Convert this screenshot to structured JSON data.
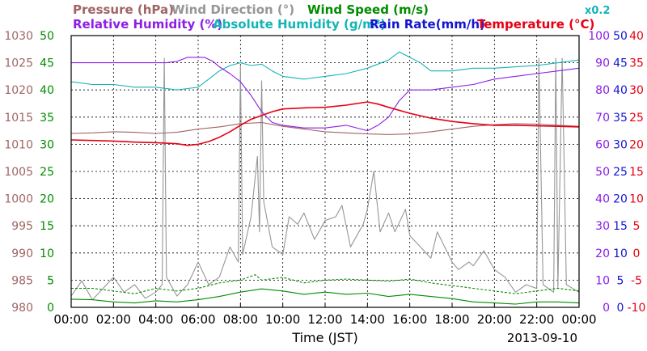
{
  "chart_data": {
    "type": "line",
    "xlabel": "Time (JST)",
    "date": "2013-09-10",
    "x_ticks": [
      "00:00",
      "02:00",
      "04:00",
      "06:00",
      "08:00",
      "10:00",
      "12:00",
      "14:00",
      "16:00",
      "18:00",
      "20:00",
      "22:00",
      "00:00"
    ],
    "xlim_hours": [
      0,
      24
    ],
    "grid": true,
    "legend": {
      "pressure": {
        "label": "Pressure (hPa)",
        "color": "#a06464"
      },
      "wind_direction": {
        "label": "Wind Direction (°)",
        "color": "#969696"
      },
      "wind_speed": {
        "label": "Wind Speed (m/s)",
        "color": "#008c00"
      },
      "relative_humidity": {
        "label": "Relative Humidity (%)",
        "color": "#8c1ee6"
      },
      "absolute_humidity": {
        "label": "Absolute Humidity (g/m³)",
        "color": "#14b4b4"
      },
      "absolute_humidity_scale": "x0.2",
      "rain_rate": {
        "label": "Rain Rate(mm/h)",
        "color": "#1414d2"
      },
      "temperature": {
        "label": "Temperature (°C)",
        "color": "#e60014"
      }
    },
    "axes": {
      "pressure": {
        "ticks": [
          "980",
          "985",
          "990",
          "995",
          "1000",
          "1005",
          "1010",
          "1015",
          "1020",
          "1025",
          "1030"
        ],
        "color": "#a06464"
      },
      "wind_speed": {
        "ticks": [
          "0",
          "5",
          "10",
          "15",
          "20",
          "25",
          "30",
          "35",
          "40",
          "45",
          "50"
        ],
        "color": "#008c00"
      },
      "relative_humidity": {
        "ticks": [
          "0",
          "10",
          "20",
          "30",
          "40",
          "50",
          "60",
          "70",
          "80",
          "90",
          "100"
        ],
        "color": "#8c1ee6"
      },
      "rain_rate": {
        "ticks": [
          "0",
          "5",
          "10",
          "15",
          "20",
          "25",
          "30",
          "35",
          "40",
          "45",
          "50"
        ],
        "color": "#1414d2"
      },
      "temperature": {
        "ticks": [
          "-10",
          "-5",
          "0",
          "5",
          "10",
          "15",
          "20",
          "25",
          "30",
          "35",
          "40"
        ],
        "color": "#e60014"
      }
    },
    "series": [
      {
        "key": "pressure",
        "unit": "hPa",
        "points": [
          [
            0,
            1012.0
          ],
          [
            1,
            1012.1
          ],
          [
            2,
            1012.3
          ],
          [
            3,
            1012.2
          ],
          [
            4,
            1012.0
          ],
          [
            5,
            1012.2
          ],
          [
            6,
            1012.8
          ],
          [
            7,
            1013.2
          ],
          [
            8,
            1013.8
          ],
          [
            9,
            1014.0
          ],
          [
            10,
            1013.3
          ],
          [
            11,
            1012.8
          ],
          [
            12,
            1012.3
          ],
          [
            13,
            1012.1
          ],
          [
            14,
            1011.9
          ],
          [
            15,
            1011.8
          ],
          [
            16,
            1011.9
          ],
          [
            17,
            1012.3
          ],
          [
            18,
            1012.8
          ],
          [
            19,
            1013.3
          ],
          [
            20,
            1013.6
          ],
          [
            21,
            1013.8
          ],
          [
            22,
            1013.7
          ],
          [
            23,
            1013.5
          ],
          [
            24,
            1013.3
          ]
        ]
      },
      {
        "key": "temperature",
        "unit": "°C",
        "points": [
          [
            0,
            20.8
          ],
          [
            1,
            20.7
          ],
          [
            2,
            20.6
          ],
          [
            3,
            20.4
          ],
          [
            4,
            20.3
          ],
          [
            5,
            20.1
          ],
          [
            5.5,
            19.8
          ],
          [
            6,
            20.0
          ],
          [
            6.5,
            20.5
          ],
          [
            7,
            21.3
          ],
          [
            7.5,
            22.3
          ],
          [
            8,
            23.5
          ],
          [
            8.5,
            24.6
          ],
          [
            9,
            25.3
          ],
          [
            9.5,
            26.0
          ],
          [
            10,
            26.5
          ],
          [
            11,
            26.7
          ],
          [
            12,
            26.8
          ],
          [
            13,
            27.2
          ],
          [
            14,
            27.8
          ],
          [
            14.5,
            27.4
          ],
          [
            15,
            26.8
          ],
          [
            16,
            25.7
          ],
          [
            17,
            24.8
          ],
          [
            18,
            24.2
          ],
          [
            19,
            23.8
          ],
          [
            20,
            23.5
          ],
          [
            21,
            23.5
          ],
          [
            22,
            23.4
          ],
          [
            23,
            23.3
          ],
          [
            24,
            23.2
          ]
        ]
      },
      {
        "key": "relative_humidity",
        "unit": "%",
        "points": [
          [
            0,
            90
          ],
          [
            4.5,
            90
          ],
          [
            5,
            90.5
          ],
          [
            5.5,
            92
          ],
          [
            6.3,
            92
          ],
          [
            6.7,
            90.5
          ],
          [
            7,
            88.5
          ],
          [
            7.5,
            86
          ],
          [
            8,
            83
          ],
          [
            8.5,
            78
          ],
          [
            9,
            72
          ],
          [
            9.5,
            68
          ],
          [
            10,
            67
          ],
          [
            11,
            66
          ],
          [
            12,
            66
          ],
          [
            13,
            67
          ],
          [
            14,
            65
          ],
          [
            14.5,
            67
          ],
          [
            15,
            70
          ],
          [
            15.5,
            76
          ],
          [
            16,
            80
          ],
          [
            17,
            80
          ],
          [
            18,
            81
          ],
          [
            19,
            82
          ],
          [
            20,
            84
          ],
          [
            21,
            85
          ],
          [
            22,
            86
          ],
          [
            23,
            87
          ],
          [
            24,
            88
          ]
        ]
      },
      {
        "key": "absolute_humidity",
        "unit": "g/m³",
        "scale": 0.2,
        "points": [
          [
            0,
            83
          ],
          [
            1,
            82
          ],
          [
            2,
            82
          ],
          [
            3,
            81
          ],
          [
            4,
            81
          ],
          [
            5,
            80
          ],
          [
            5.5,
            80.5
          ],
          [
            6,
            81
          ],
          [
            6.5,
            84
          ],
          [
            7,
            87
          ],
          [
            7.5,
            89
          ],
          [
            8,
            90
          ],
          [
            8.5,
            89
          ],
          [
            9,
            89.5
          ],
          [
            9.5,
            87
          ],
          [
            10,
            85
          ],
          [
            11,
            84
          ],
          [
            12,
            85
          ],
          [
            13,
            86
          ],
          [
            14,
            88
          ],
          [
            15,
            91
          ],
          [
            15.5,
            94
          ],
          [
            16,
            92
          ],
          [
            16.5,
            90
          ],
          [
            17,
            87
          ],
          [
            18,
            87
          ],
          [
            19,
            88
          ],
          [
            20,
            88
          ],
          [
            21,
            88.5
          ],
          [
            22,
            89
          ],
          [
            23,
            90
          ],
          [
            24,
            91
          ]
        ]
      },
      {
        "key": "wind_direction",
        "unit": "°",
        "points": [
          [
            0,
            15
          ],
          [
            0.5,
            35
          ],
          [
            1,
            10
          ],
          [
            1.5,
            25
          ],
          [
            2,
            40
          ],
          [
            2.5,
            20
          ],
          [
            3,
            30
          ],
          [
            3.5,
            12
          ],
          [
            4,
            20
          ],
          [
            4.3,
            30
          ],
          [
            4.4,
            330
          ],
          [
            4.5,
            40
          ],
          [
            5,
            15
          ],
          [
            5.5,
            30
          ],
          [
            6,
            60
          ],
          [
            6.5,
            30
          ],
          [
            7,
            40
          ],
          [
            7.5,
            80
          ],
          [
            7.9,
            60
          ],
          [
            8,
            320
          ],
          [
            8.1,
            70
          ],
          [
            8.5,
            120
          ],
          [
            8.8,
            200
          ],
          [
            8.9,
            100
          ],
          [
            9,
            300
          ],
          [
            9.1,
            140
          ],
          [
            9.5,
            80
          ],
          [
            10,
            70
          ],
          [
            10.3,
            120
          ],
          [
            10.7,
            110
          ],
          [
            11,
            125
          ],
          [
            11.5,
            90
          ],
          [
            12,
            115
          ],
          [
            12.5,
            120
          ],
          [
            12.8,
            135
          ],
          [
            13.2,
            80
          ],
          [
            13.8,
            110
          ],
          [
            14,
            130
          ],
          [
            14.3,
            180
          ],
          [
            14.6,
            100
          ],
          [
            15,
            125
          ],
          [
            15.3,
            100
          ],
          [
            15.8,
            130
          ],
          [
            16,
            95
          ],
          [
            16.5,
            80
          ],
          [
            17,
            65
          ],
          [
            17.3,
            100
          ],
          [
            18,
            60
          ],
          [
            18.3,
            50
          ],
          [
            18.8,
            60
          ],
          [
            19,
            55
          ],
          [
            19.5,
            75
          ],
          [
            20,
            50
          ],
          [
            20.5,
            40
          ],
          [
            21,
            20
          ],
          [
            21.5,
            30
          ],
          [
            22,
            25
          ],
          [
            22.1,
            330
          ],
          [
            22.3,
            30
          ],
          [
            22.8,
            20
          ],
          [
            22.9,
            330
          ],
          [
            23,
            25
          ],
          [
            23.2,
            330
          ],
          [
            23.4,
            30
          ],
          [
            24,
            20
          ]
        ]
      },
      {
        "key": "wind_speed",
        "unit": "m/s",
        "points": [
          [
            0,
            1.5
          ],
          [
            1,
            1.4
          ],
          [
            2,
            1.0
          ],
          [
            3,
            0.8
          ],
          [
            4,
            1.2
          ],
          [
            5,
            1.0
          ],
          [
            6,
            1.4
          ],
          [
            7,
            2.0
          ],
          [
            8,
            2.8
          ],
          [
            9,
            3.4
          ],
          [
            10,
            3.0
          ],
          [
            11,
            2.4
          ],
          [
            12,
            2.8
          ],
          [
            13,
            2.4
          ],
          [
            14,
            2.6
          ],
          [
            15,
            2.0
          ],
          [
            16,
            2.4
          ],
          [
            17,
            2.0
          ],
          [
            18,
            1.6
          ],
          [
            19,
            1.0
          ],
          [
            20,
            0.8
          ],
          [
            21,
            0.6
          ],
          [
            22,
            1.0
          ],
          [
            23,
            1.0
          ],
          [
            24,
            0.8
          ]
        ]
      },
      {
        "key": "wind_speed_max",
        "unit": "m/s",
        "dashed": true,
        "points": [
          [
            0,
            3.5
          ],
          [
            1,
            3.5
          ],
          [
            2,
            3.0
          ],
          [
            3,
            2.5
          ],
          [
            4,
            3.5
          ],
          [
            5,
            3.0
          ],
          [
            6,
            3.5
          ],
          [
            7,
            4.5
          ],
          [
            8,
            5.0
          ],
          [
            8.7,
            6.0
          ],
          [
            9,
            5.0
          ],
          [
            10,
            5.5
          ],
          [
            11,
            4.5
          ],
          [
            12,
            5.0
          ],
          [
            13,
            5.2
          ],
          [
            14,
            5.0
          ],
          [
            15,
            4.8
          ],
          [
            16,
            5.2
          ],
          [
            17,
            4.5
          ],
          [
            18,
            4.0
          ],
          [
            19,
            3.5
          ],
          [
            20,
            3.0
          ],
          [
            21,
            2.5
          ],
          [
            22,
            3.0
          ],
          [
            23,
            3.5
          ],
          [
            24,
            3.0
          ]
        ]
      },
      {
        "key": "rain_rate",
        "unit": "mm/h",
        "points": [
          [
            0,
            0
          ],
          [
            24,
            0
          ]
        ]
      }
    ]
  }
}
